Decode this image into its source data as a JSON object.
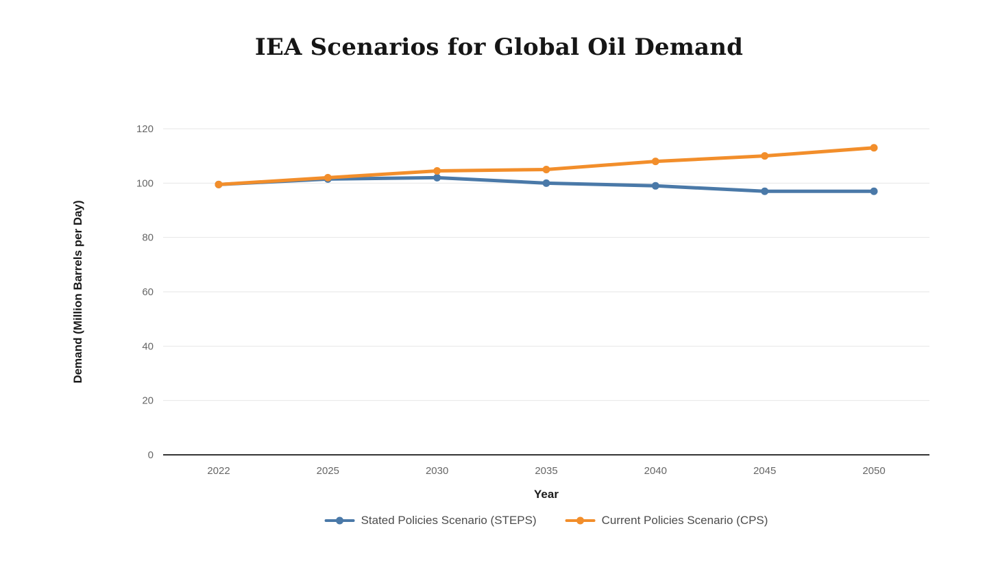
{
  "page": {
    "background_color": "#ffffff"
  },
  "chart_data": {
    "type": "line",
    "title": "IEA Scenarios for Global Oil Demand",
    "xlabel": "Year",
    "ylabel": "Demand (Million Barrels per Day)",
    "categories": [
      "2022",
      "2025",
      "2030",
      "2035",
      "2040",
      "2045",
      "2050"
    ],
    "series": [
      {
        "name": "Stated Policies Scenario (STEPS)",
        "color": "#4A79A8",
        "values": [
          99.5,
          101.5,
          102,
          100,
          99,
          97,
          97
        ]
      },
      {
        "name": "Current Policies Scenario (CPS)",
        "color": "#F28E2B",
        "values": [
          99.5,
          102,
          104.5,
          105,
          108,
          110,
          113
        ]
      }
    ],
    "ylim": [
      0,
      120
    ],
    "yticks": [
      0,
      20,
      40,
      60,
      80,
      100,
      120
    ],
    "grid": true,
    "legend_position": "bottom",
    "styles": {
      "grid_color": "#e6e6e6",
      "axis_line_color": "#333333",
      "tick_label_color": "#666666",
      "title_color": "#161616",
      "legend_text_color": "#4c4c4c"
    }
  }
}
